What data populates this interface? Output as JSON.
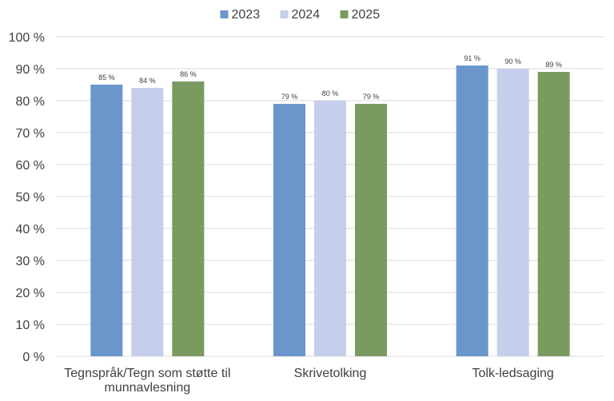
{
  "chart_data": {
    "type": "bar",
    "categories": [
      [
        "Tegnspråk/Tegn som støtte til",
        "munnavlesning"
      ],
      [
        "Skrivetolking"
      ],
      [
        "Tolk-ledsaging"
      ]
    ],
    "series": [
      {
        "name": "2023",
        "color": "#6a96cc",
        "values": [
          85,
          79,
          91
        ],
        "labels": [
          "85 %",
          "79 %",
          "91 %"
        ]
      },
      {
        "name": "2024",
        "color": "#c5cfeb",
        "values": [
          84,
          80,
          90
        ],
        "labels": [
          "84 %",
          "80 %",
          "90 %"
        ]
      },
      {
        "name": "2025",
        "color": "#7a9a5f",
        "values": [
          86,
          79,
          89
        ],
        "labels": [
          "86 %",
          "79 %",
          "89 %"
        ]
      }
    ],
    "y_ticks": [
      0,
      10,
      20,
      30,
      40,
      50,
      60,
      70,
      80,
      90,
      100
    ],
    "y_tick_labels": [
      "0 %",
      "10 %",
      "20 %",
      "30 %",
      "40 %",
      "50 %",
      "60 %",
      "70 %",
      "80 %",
      "90 %",
      "100 %"
    ],
    "ylim": [
      0,
      100
    ],
    "grid": true,
    "legend": "top-center",
    "gridline_color": "#d9d9d9"
  }
}
